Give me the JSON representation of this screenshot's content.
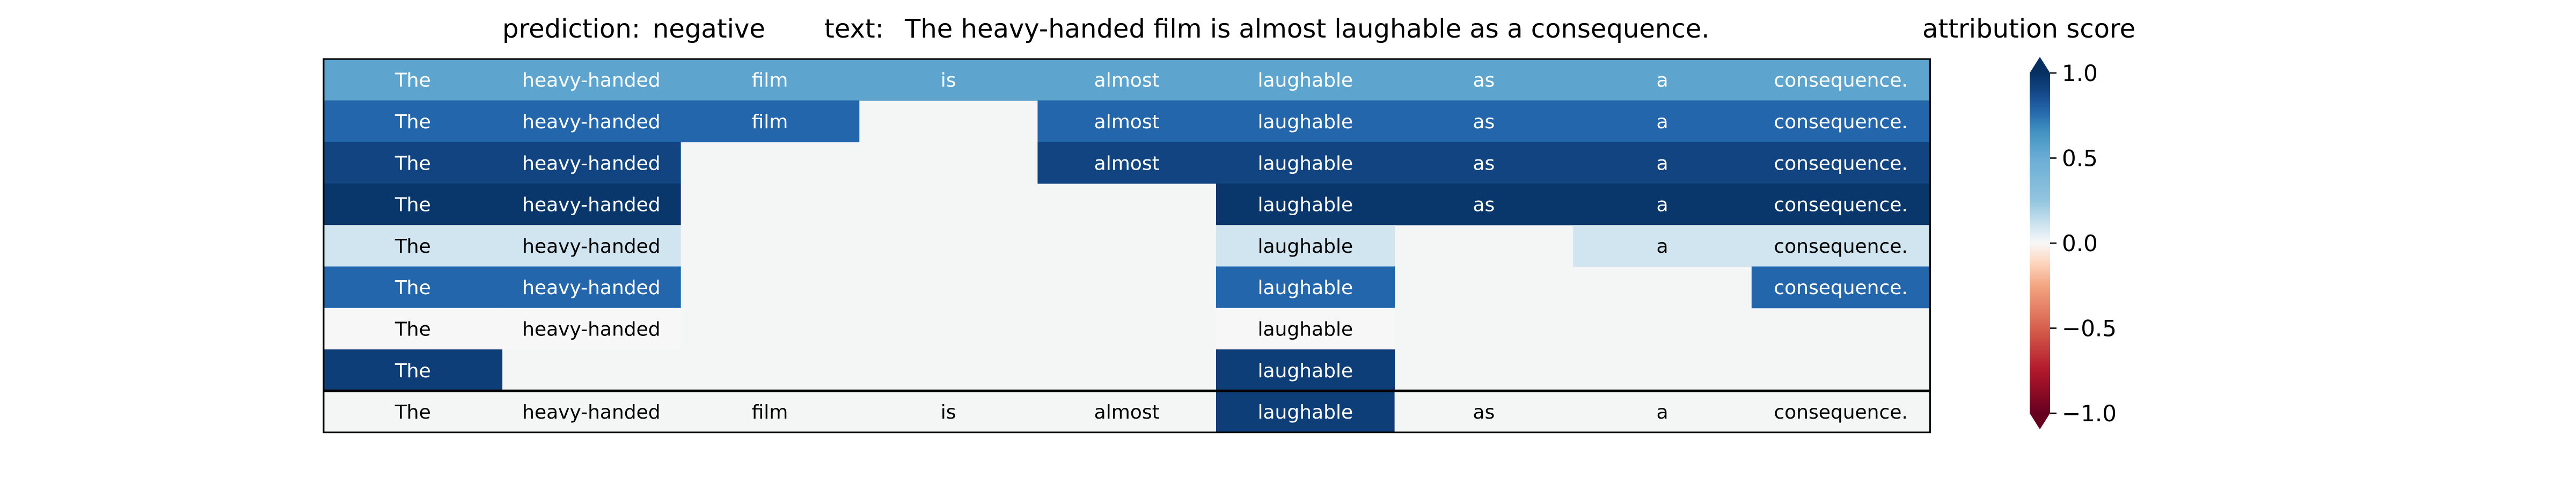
{
  "header": {
    "prediction_label": "prediction:",
    "prediction_value": "negative",
    "text_label": "text:",
    "text_value": "The heavy-handed film is almost laughable as a consequence."
  },
  "colorbar": {
    "title": "attribution score",
    "ticks": [
      "1.0",
      "0.5",
      "0.0",
      "−0.5",
      "−1.0"
    ],
    "tick_values": [
      1.0,
      0.5,
      0.0,
      -0.5,
      -1.0
    ],
    "range": [
      -1.0,
      1.0
    ],
    "colormap": "RdBu",
    "colors": {
      "neg_max": "#67001f",
      "neg_mid": "#e08a6c",
      "neutral": "#f7f7f7",
      "pos_mid": "#6aadd5",
      "pos_max": "#053061"
    }
  },
  "chart_data": {
    "type": "heatmap",
    "tokens": [
      "The",
      "heavy-handed",
      "film",
      "is",
      "almost",
      "laughable",
      "as",
      "a",
      "consequence."
    ],
    "rows": [
      {
        "present": [
          1,
          1,
          1,
          1,
          1,
          1,
          1,
          1,
          1
        ],
        "score": 0.55
      },
      {
        "present": [
          1,
          1,
          1,
          0,
          1,
          1,
          1,
          1,
          1
        ],
        "score": 0.78
      },
      {
        "present": [
          1,
          1,
          0,
          0,
          1,
          1,
          1,
          1,
          1
        ],
        "score": 0.9
      },
      {
        "present": [
          1,
          1,
          0,
          0,
          0,
          1,
          1,
          1,
          1
        ],
        "score": 0.97
      },
      {
        "present": [
          1,
          1,
          0,
          0,
          0,
          1,
          0,
          1,
          1
        ],
        "score": 0.1
      },
      {
        "present": [
          1,
          1,
          0,
          0,
          0,
          1,
          0,
          0,
          1
        ],
        "score": 0.78
      },
      {
        "present": [
          1,
          1,
          0,
          0,
          0,
          1,
          0,
          0,
          0
        ],
        "score": 0.0
      },
      {
        "present": [
          1,
          0,
          0,
          0,
          0,
          1,
          0,
          0,
          0
        ],
        "score": 0.93
      }
    ],
    "final_row": {
      "tokens": [
        "The",
        "heavy-handed",
        "film",
        "is",
        "almost",
        "laughable",
        "as",
        "a",
        "consequence."
      ],
      "scores": [
        0.0,
        0.0,
        0.0,
        0.0,
        0.0,
        0.93,
        0.0,
        0.0,
        0.0
      ]
    },
    "colorbar_range": [
      -1.0,
      1.0
    ]
  }
}
